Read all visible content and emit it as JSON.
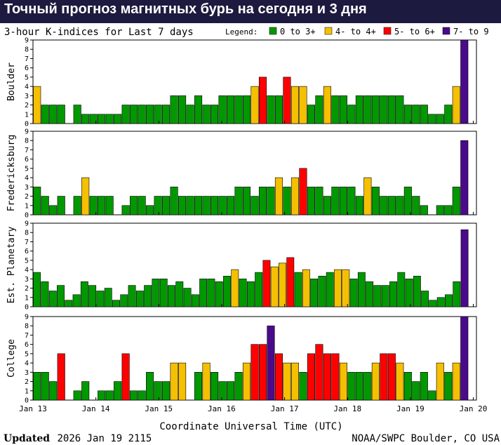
{
  "page_title": "Точный прогноз магнитных бурь на сегодня и 3 дня",
  "chart_data": {
    "type": "bar",
    "title": "3-hour K-indices for Last 7 days",
    "legend_title": "Legend:",
    "legend_placement": "top-right",
    "legend": [
      {
        "label": "0 to 3+",
        "color": "#009900"
      },
      {
        "label": "4- to 4+",
        "color": "#f5c000"
      },
      {
        "label": "5- to 6+",
        "color": "#ff0000"
      },
      {
        "label": "7- to 9",
        "color": "#4a0a8a"
      }
    ],
    "xlabel": "Coordinate Universal Time (UTC)",
    "x_ticks": [
      "Jan 13",
      "Jan 14",
      "Jan 15",
      "Jan 16",
      "Jan 17",
      "Jan 18",
      "Jan 19",
      "Jan 20"
    ],
    "y_ticks": [
      "0",
      "1",
      "2",
      "3",
      "4",
      "5",
      "6",
      "7",
      "8",
      "9"
    ],
    "ylim": [
      0,
      9
    ],
    "grid": false,
    "color_scale": [
      {
        "min": 0,
        "max": 3.99,
        "color": "#009900"
      },
      {
        "min": 4,
        "max": 4.99,
        "color": "#f5c000"
      },
      {
        "min": 5,
        "max": 6.99,
        "color": "#ff0000"
      },
      {
        "min": 7,
        "max": 9,
        "color": "#4a0a8a"
      }
    ],
    "panels": [
      {
        "label": "Boulder",
        "values": [
          4,
          2,
          2,
          2,
          0,
          2,
          1,
          1,
          1,
          1,
          1,
          2,
          2,
          2,
          2,
          2,
          2,
          3,
          3,
          2,
          3,
          2,
          2,
          3,
          3,
          3,
          3,
          4,
          5,
          3,
          3,
          5,
          4,
          4,
          2,
          3,
          4,
          3,
          3,
          2,
          3,
          3,
          3,
          3,
          3,
          3,
          2,
          2,
          2,
          1,
          1,
          2,
          4,
          9,
          0
        ]
      },
      {
        "label": "Fredericksburg",
        "values": [
          3,
          2,
          1,
          2,
          0,
          2,
          4,
          2,
          2,
          2,
          0,
          1,
          2,
          2,
          1,
          2,
          2,
          3,
          2,
          2,
          2,
          2,
          2,
          2,
          2,
          3,
          3,
          2,
          3,
          3,
          4,
          3,
          4,
          5,
          3,
          3,
          2,
          3,
          3,
          3,
          2,
          4,
          3,
          2,
          2,
          2,
          3,
          2,
          1,
          0,
          1,
          1,
          3,
          8,
          0
        ]
      },
      {
        "label": "Est. Planetary",
        "values": [
          3.7,
          2.7,
          1.7,
          2.3,
          0.7,
          1.3,
          2.7,
          2.3,
          1.7,
          2.0,
          0.7,
          1.3,
          2.3,
          1.7,
          2.3,
          3.0,
          3.0,
          2.3,
          2.7,
          2.0,
          1.3,
          3.0,
          3.0,
          2.7,
          3.3,
          4.0,
          3.0,
          2.7,
          3.7,
          5.0,
          4.3,
          4.7,
          5.3,
          3.7,
          4.0,
          3.0,
          3.3,
          3.7,
          4.0,
          4.0,
          3.0,
          3.7,
          2.7,
          2.3,
          2.3,
          2.7,
          3.7,
          3.0,
          3.3,
          1.7,
          0.7,
          1.0,
          1.3,
          2.7,
          8.3,
          0.0
        ]
      },
      {
        "label": "College",
        "values": [
          3,
          3,
          2,
          5,
          0,
          1,
          2,
          0,
          1,
          1,
          2,
          5,
          1,
          1,
          3,
          2,
          2,
          4,
          4,
          0,
          3,
          4,
          3,
          2,
          2,
          3,
          4,
          6,
          6,
          8,
          5,
          4,
          4,
          3,
          5,
          6,
          5,
          5,
          4,
          3,
          3,
          3,
          4,
          5,
          5,
          4,
          3,
          2,
          3,
          1,
          4,
          3,
          4,
          9,
          0
        ]
      }
    ],
    "footer_left_label": "Updated",
    "footer_left_value": "2026 Jan 19 2115",
    "footer_right": "NOAA/SWPC Boulder, CO USA"
  }
}
